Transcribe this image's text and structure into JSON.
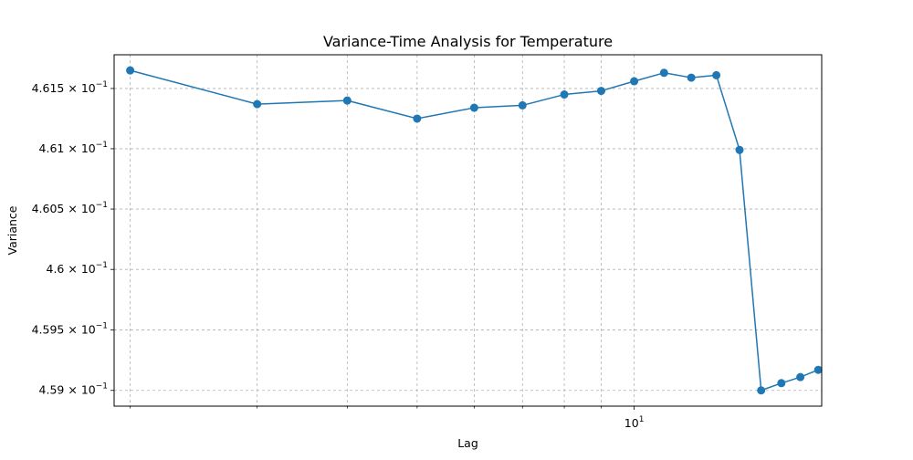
{
  "chart_data": {
    "type": "line",
    "title": "Variance-Time Analysis for Temperature",
    "xlabel": "Lag",
    "ylabel": "Variance",
    "x_scale": "log",
    "y_scale": "log",
    "grid": true,
    "xlim": [
      1.9,
      18.2
    ],
    "ylim": [
      0.45887,
      0.46178
    ],
    "x_ticks": [
      {
        "value": 10,
        "base": "10",
        "exp": "1"
      }
    ],
    "x_minor_ticks": [
      2,
      3,
      4,
      5,
      6,
      7,
      8,
      9,
      20
    ],
    "y_ticks": [
      {
        "value": 0.459,
        "mantissa": "4.59",
        "base": "10",
        "exp": "−1"
      },
      {
        "value": 0.4595,
        "mantissa": "4.595",
        "base": "10",
        "exp": "−1"
      },
      {
        "value": 0.46,
        "mantissa": "4.6",
        "base": "10",
        "exp": "−1"
      },
      {
        "value": 0.4605,
        "mantissa": "4.605",
        "base": "10",
        "exp": "−1"
      },
      {
        "value": 0.461,
        "mantissa": "4.61",
        "base": "10",
        "exp": "−1"
      },
      {
        "value": 0.4615,
        "mantissa": "4.615",
        "base": "10",
        "exp": "−1"
      }
    ],
    "series": [
      {
        "color": "#1f77b4",
        "x": [
          2,
          3,
          4,
          5,
          6,
          7,
          8,
          9,
          10,
          11,
          12,
          13,
          14,
          15,
          16,
          17,
          18,
          19,
          20
        ],
        "y": [
          0.46165,
          0.46137,
          0.4614,
          0.46125,
          0.46134,
          0.46136,
          0.46145,
          0.46148,
          0.46156,
          0.46163,
          0.46159,
          0.46161,
          0.46099,
          0.459,
          0.45906,
          0.45911,
          0.45917,
          0.45922,
          0.45922
        ]
      }
    ]
  }
}
